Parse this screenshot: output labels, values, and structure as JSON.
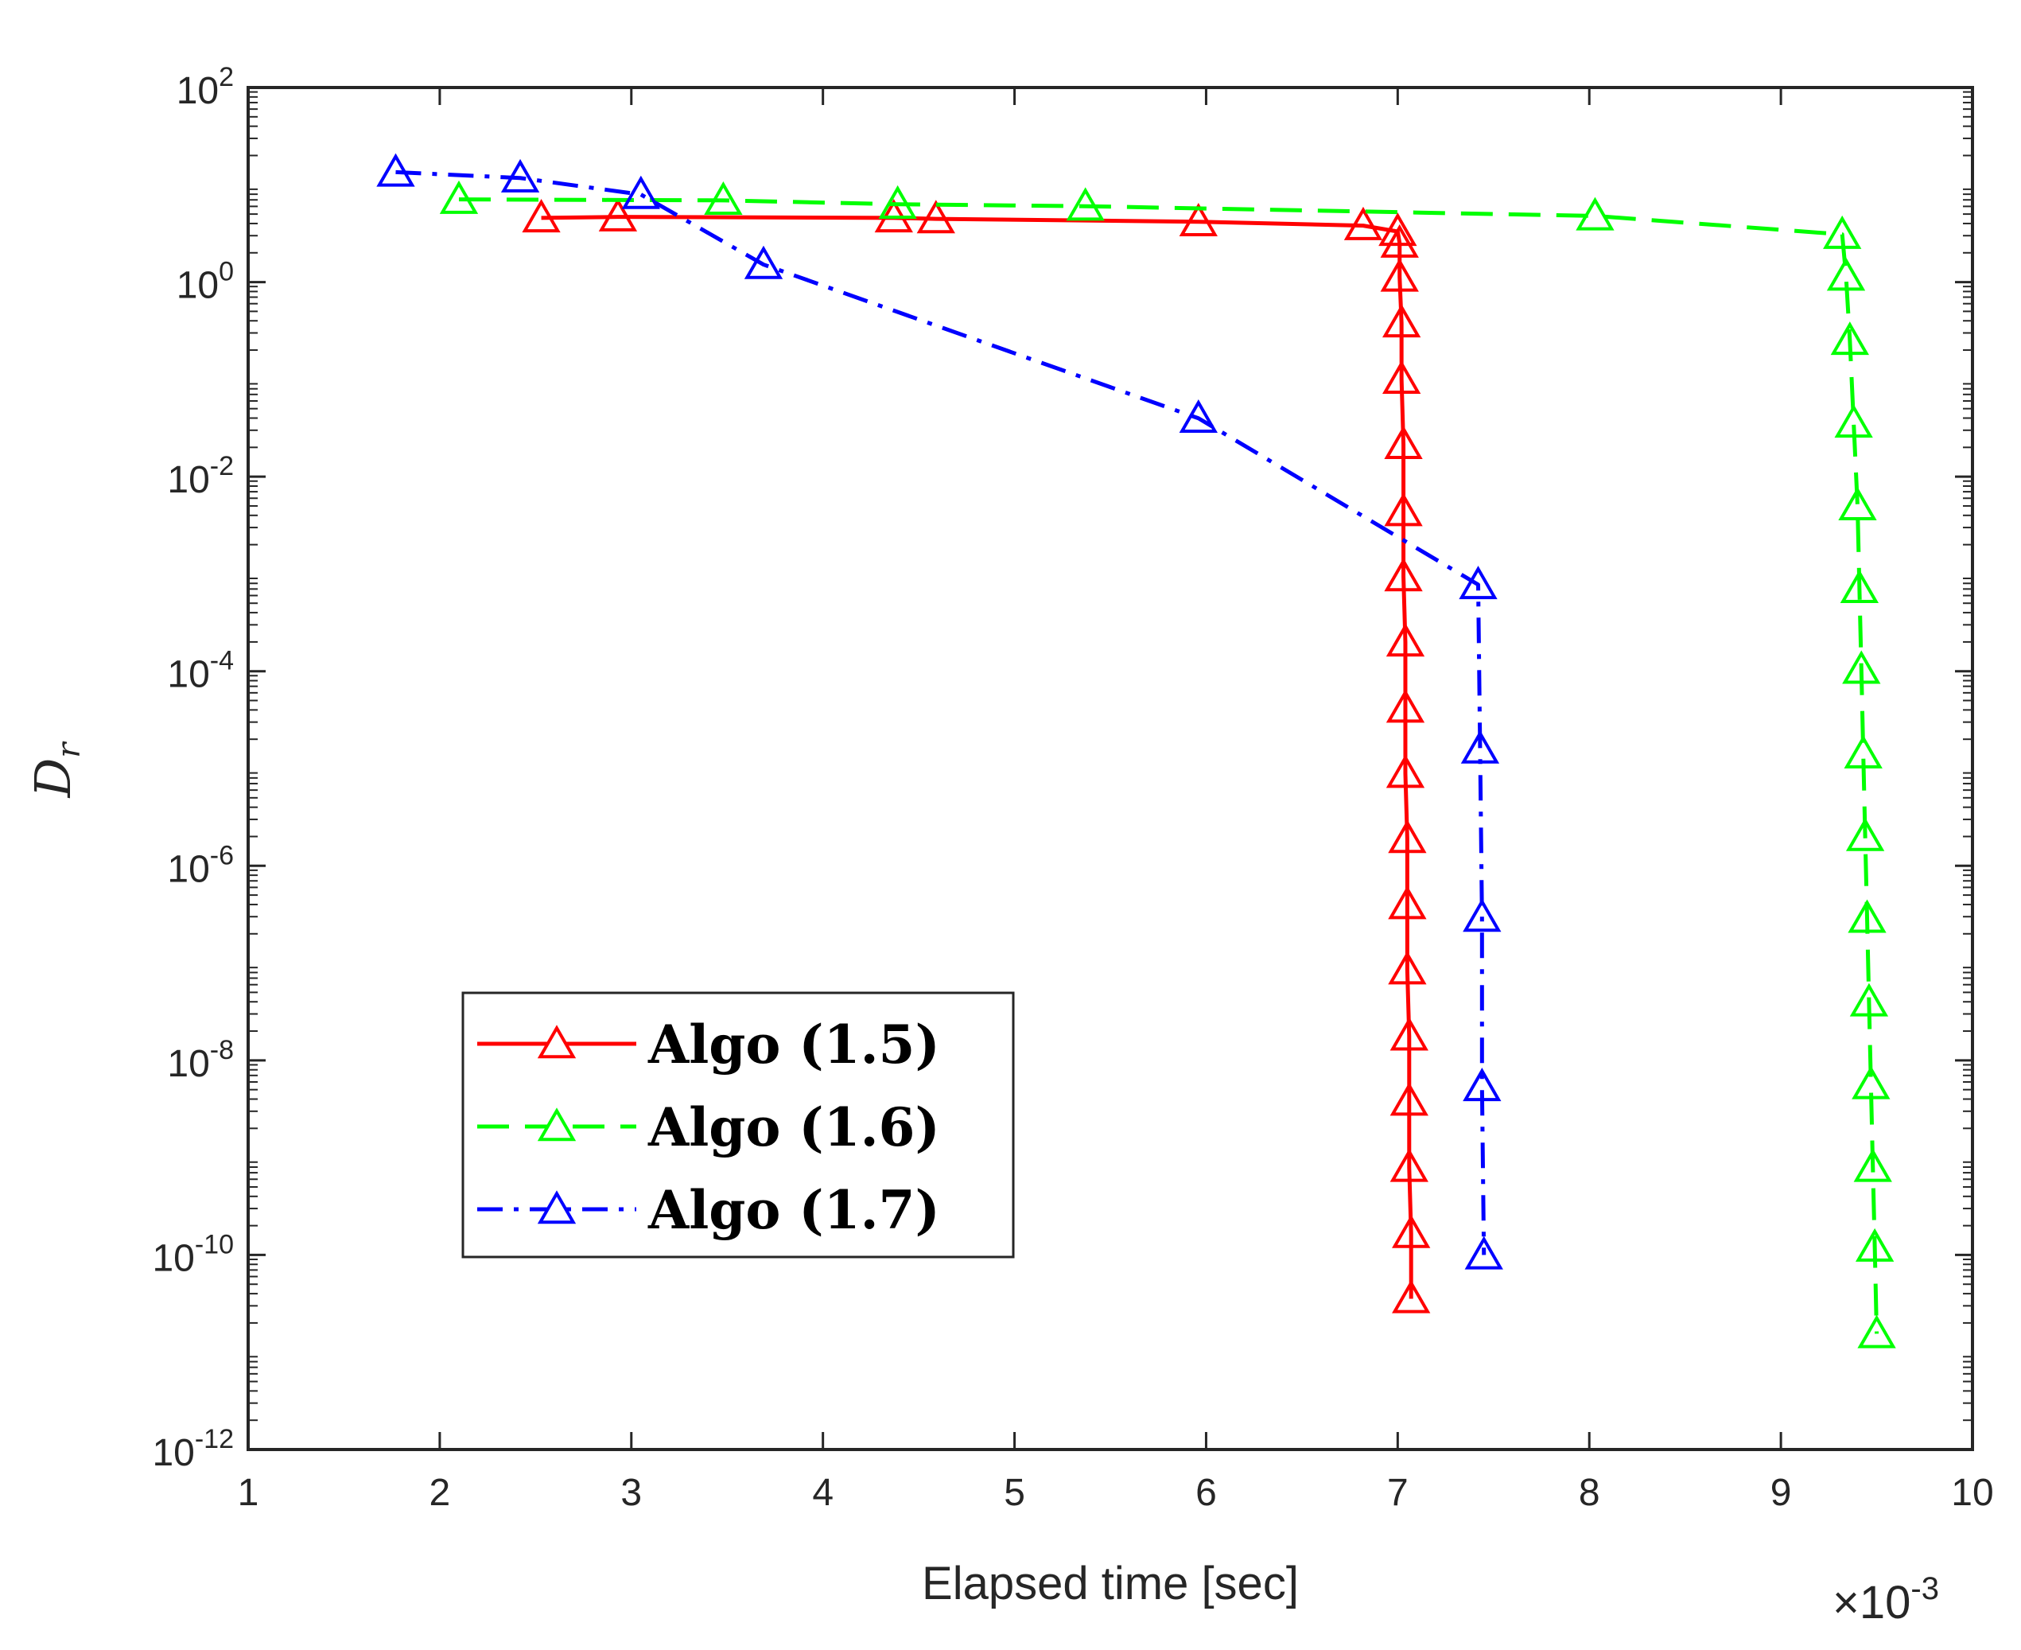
{
  "chart_data": {
    "type": "line",
    "title": "",
    "xlabel": "Elapsed time [sec]",
    "x_multiplier": {
      "base": "×10",
      "exponent": "-3"
    },
    "ylabel": {
      "main": "D",
      "sub": "r"
    },
    "xlim": [
      1,
      10
    ],
    "ylim_log10": [
      -12,
      2
    ],
    "yscale": "log",
    "grid": false,
    "legend_position": "lower-left",
    "x_ticks": [
      {
        "value": 1,
        "label": "1"
      },
      {
        "value": 2,
        "label": "2"
      },
      {
        "value": 3,
        "label": "3"
      },
      {
        "value": 4,
        "label": "4"
      },
      {
        "value": 5,
        "label": "5"
      },
      {
        "value": 6,
        "label": "6"
      },
      {
        "value": 7,
        "label": "7"
      },
      {
        "value": 8,
        "label": "8"
      },
      {
        "value": 9,
        "label": "9"
      },
      {
        "value": 10,
        "label": "10"
      }
    ],
    "y_ticks": [
      {
        "exp": 2,
        "base": "10",
        "sup": "2"
      },
      {
        "exp": 0,
        "base": "10",
        "sup": "0"
      },
      {
        "exp": -2,
        "base": "10",
        "sup": "-2"
      },
      {
        "exp": -4,
        "base": "10",
        "sup": "-4"
      },
      {
        "exp": -6,
        "base": "10",
        "sup": "-6"
      },
      {
        "exp": -8,
        "base": "10",
        "sup": "-8"
      },
      {
        "exp": -10,
        "base": "10",
        "sup": "-10"
      },
      {
        "exp": -12,
        "base": "10",
        "sup": "-12"
      }
    ],
    "series": [
      {
        "name": "Algo (1.5)",
        "color": "#ff0000",
        "dash": "solid",
        "marker": "triangle",
        "points": [
          [
            2.53,
            0.66
          ],
          [
            2.93,
            0.67
          ],
          [
            4.37,
            0.66
          ],
          [
            4.59,
            0.65
          ],
          [
            5.96,
            0.62
          ],
          [
            6.82,
            0.58
          ],
          [
            7.0,
            0.52
          ],
          [
            7.01,
            0.4
          ],
          [
            7.01,
            0.05
          ],
          [
            7.02,
            -0.42
          ],
          [
            7.02,
            -1.0
          ],
          [
            7.03,
            -1.67
          ],
          [
            7.03,
            -2.36
          ],
          [
            7.03,
            -3.03
          ],
          [
            7.04,
            -3.7
          ],
          [
            7.04,
            -4.38
          ],
          [
            7.04,
            -5.05
          ],
          [
            7.05,
            -5.72
          ],
          [
            7.05,
            -6.4
          ],
          [
            7.05,
            -7.07
          ],
          [
            7.06,
            -7.75
          ],
          [
            7.06,
            -8.42
          ],
          [
            7.06,
            -9.1
          ],
          [
            7.07,
            -9.78
          ],
          [
            7.07,
            -10.45
          ]
        ]
      },
      {
        "name": "Algo (1.6)",
        "color": "#00ff00",
        "dash": "dashed",
        "marker": "triangle",
        "points": [
          [
            2.1,
            0.85
          ],
          [
            3.48,
            0.84
          ],
          [
            4.39,
            0.8
          ],
          [
            5.37,
            0.78
          ],
          [
            8.03,
            0.68
          ],
          [
            9.32,
            0.49
          ],
          [
            9.34,
            0.06
          ],
          [
            9.36,
            -0.6
          ],
          [
            9.38,
            -1.45
          ],
          [
            9.4,
            -2.3
          ],
          [
            9.41,
            -3.15
          ],
          [
            9.42,
            -3.98
          ],
          [
            9.43,
            -4.85
          ],
          [
            9.44,
            -5.7
          ],
          [
            9.45,
            -6.54
          ],
          [
            9.46,
            -7.4
          ],
          [
            9.47,
            -8.25
          ],
          [
            9.48,
            -9.1
          ],
          [
            9.49,
            -9.92
          ],
          [
            9.5,
            -10.81
          ]
        ]
      },
      {
        "name": "Algo (1.7)",
        "color": "#0000ff",
        "dash": "dashdot",
        "marker": "triangle",
        "points": [
          [
            1.77,
            1.13
          ],
          [
            2.42,
            1.07
          ],
          [
            3.05,
            0.9
          ],
          [
            3.69,
            0.18
          ],
          [
            5.96,
            -1.4
          ],
          [
            7.42,
            -3.11
          ],
          [
            7.43,
            -4.8
          ],
          [
            7.44,
            -6.53
          ],
          [
            7.44,
            -8.27
          ],
          [
            7.45,
            -10.0
          ]
        ]
      }
    ]
  }
}
